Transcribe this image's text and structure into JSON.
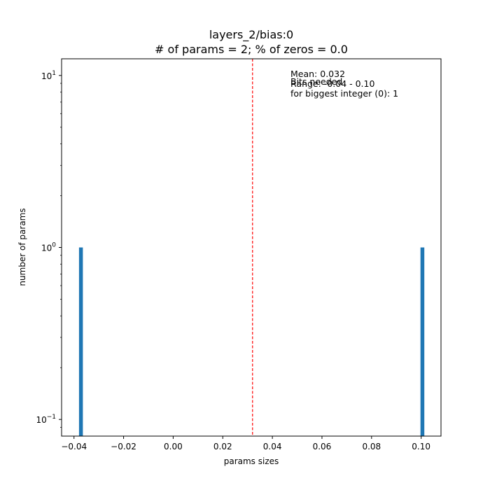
{
  "chart_data": {
    "type": "bar",
    "title_line1": "layers_2/bias:0",
    "title_line2": "# of params = 2; % of zeros = 0.0",
    "xlabel": "params sizes",
    "ylabel": "number of params",
    "xlim": [
      -0.045,
      0.108
    ],
    "ylim": [
      0.08,
      12.5
    ],
    "yscale": "log",
    "x_ticks": [
      -0.04,
      -0.02,
      0.0,
      0.02,
      0.04,
      0.06,
      0.08,
      0.1
    ],
    "x_tick_labels": [
      "−0.04",
      "−0.02",
      "0.00",
      "0.02",
      "0.04",
      "0.06",
      "0.08",
      "0.10"
    ],
    "y_major_ticks": [
      {
        "value": 0.1,
        "base": "10",
        "exp": "−1"
      },
      {
        "value": 1,
        "base": "10",
        "exp": "0"
      },
      {
        "value": 10,
        "base": "10",
        "exp": "1"
      }
    ],
    "bars": [
      {
        "x": -0.0372,
        "count": 1
      },
      {
        "x": 0.1005,
        "count": 1
      }
    ],
    "bar_color": "#1f77b4",
    "mean": 0.032,
    "mean_line_color": "#ff0000",
    "annotations": [
      "Mean: 0.032",
      "Range: -0.04 - 0.10",
      "Bits needed",
      "for biggest integer (0): 1"
    ],
    "grid": false
  }
}
